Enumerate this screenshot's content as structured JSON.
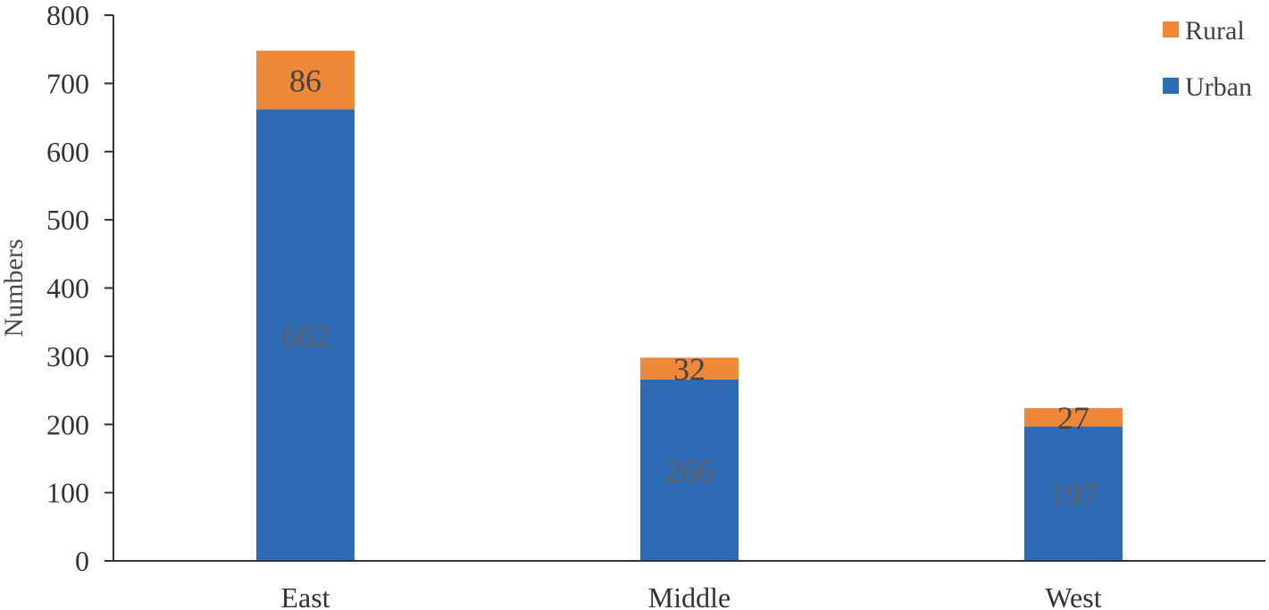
{
  "chart_data": {
    "type": "bar",
    "stacked": true,
    "categories": [
      "East",
      "Middle",
      "West"
    ],
    "series": [
      {
        "name": "Urban",
        "values": [
          662,
          266,
          197
        ],
        "color": "#2e6bb4",
        "label_color": "#5f5f5f"
      },
      {
        "name": "Rural",
        "values": [
          86,
          32,
          27
        ],
        "color": "#f0883a",
        "label_color": "#444444"
      }
    ],
    "title": "",
    "xlabel": "",
    "ylabel": "Numbers",
    "ylim": [
      0,
      800
    ],
    "yticks": [
      0,
      100,
      200,
      300,
      400,
      500,
      600,
      700,
      800
    ],
    "grid": false,
    "legend": {
      "position": "top-right",
      "order": [
        "Rural",
        "Urban"
      ]
    }
  }
}
